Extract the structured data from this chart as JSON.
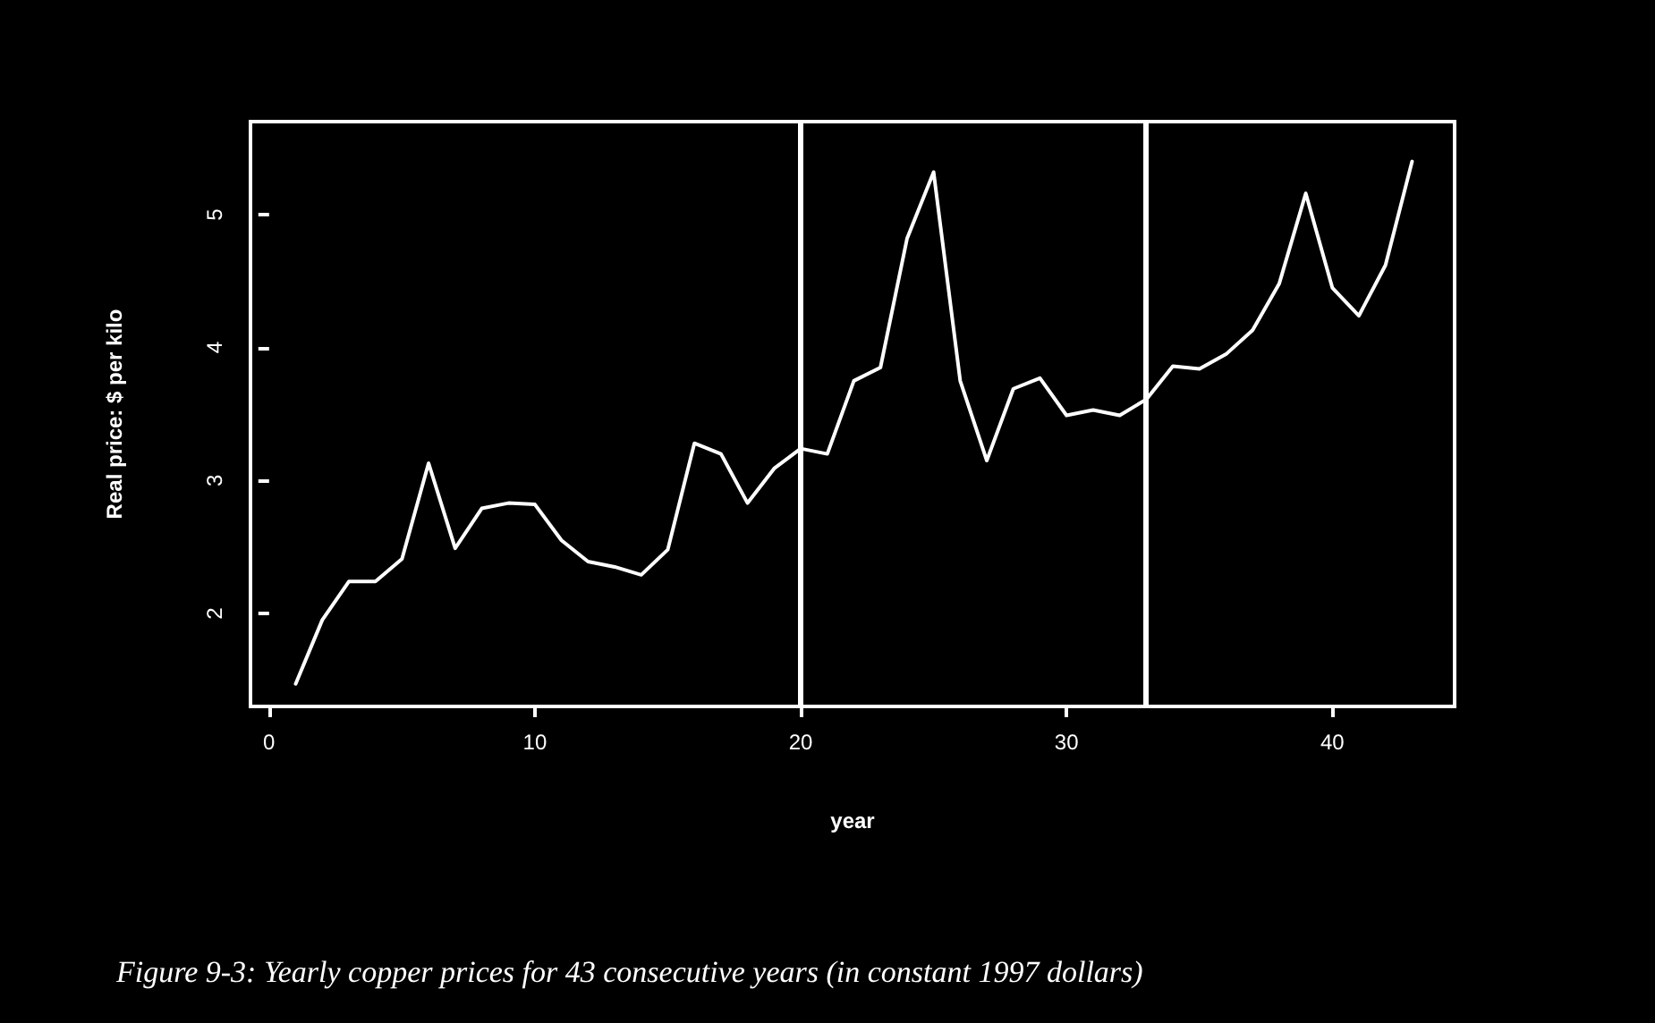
{
  "chart_data": {
    "type": "line",
    "xlabel": "year",
    "ylabel": "Real price: $ per kilo",
    "annotations": [
      "Figure 9-3: Yearly copper prices for 43 consecutive years (in constant 1997 dollars)"
    ],
    "x": [
      1,
      2,
      3,
      4,
      5,
      6,
      7,
      8,
      9,
      10,
      11,
      12,
      13,
      14,
      15,
      16,
      17,
      18,
      19,
      20,
      21,
      22,
      23,
      24,
      25,
      26,
      27,
      28,
      29,
      30,
      31,
      32,
      33,
      34,
      35,
      36,
      37,
      38,
      39,
      40,
      41,
      42,
      43
    ],
    "series": [
      {
        "color": "#ffffff",
        "values": [
          1.47,
          1.95,
          2.24,
          2.24,
          2.41,
          3.13,
          2.49,
          2.79,
          2.83,
          2.82,
          2.55,
          2.39,
          2.35,
          2.29,
          2.48,
          3.28,
          3.2,
          2.83,
          3.09,
          3.24,
          3.2,
          3.75,
          3.85,
          4.82,
          5.32,
          3.75,
          3.15,
          3.69,
          3.77,
          3.49,
          3.53,
          3.49,
          3.61,
          3.86,
          3.84,
          3.95,
          4.13,
          4.48,
          5.16,
          4.45,
          4.24,
          4.62,
          5.4
        ]
      }
    ],
    "xlim": [
      -0.7,
      44.6
    ],
    "xticks": [
      0,
      10,
      20,
      30,
      40
    ],
    "ylim": [
      1.3,
      5.7
    ],
    "yticks": [
      2,
      3,
      4,
      5
    ],
    "ref_lines": [
      {
        "axis": "x",
        "value": 20,
        "color": "#ffffff"
      },
      {
        "axis": "x",
        "value": 33,
        "color": "#ffffff"
      }
    ],
    "grid": false,
    "marker": "none",
    "line_style": "solid"
  }
}
